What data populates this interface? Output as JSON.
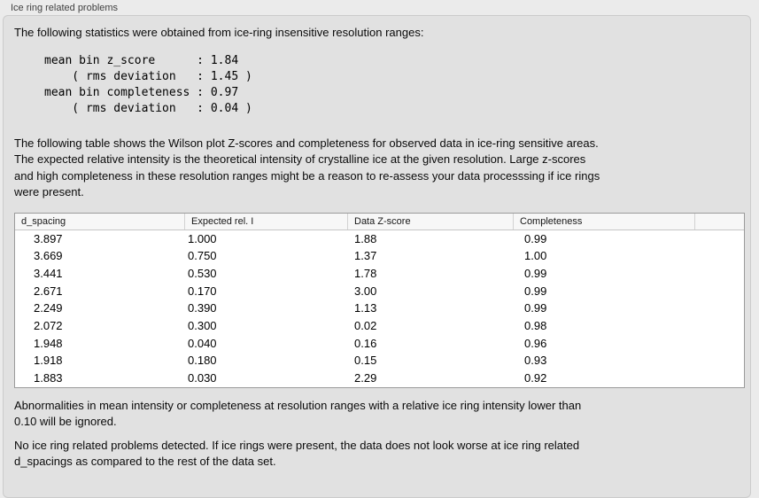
{
  "panel": {
    "title": "Ice ring related problems",
    "intro": "The following statistics were obtained from ice-ring insensitive resolution ranges:",
    "stats_block": "mean bin z_score      : 1.84\n    ( rms deviation   : 1.45 )\nmean bin completeness : 0.97\n    ( rms deviation   : 0.04 )",
    "table_description": "The following table shows the Wilson plot Z-scores and completeness for observed data in ice-ring sensitive areas.\nThe expected relative intensity is the theoretical intensity of crystalline ice at the given resolution. Large z-scores\nand high completeness in these resolution ranges might be a reason to re-assess your data processsing if ice rings\nwere present.",
    "ignore_note": "Abnormalities in mean intensity or completeness at resolution ranges with a relative ice ring intensity lower than\n0.10 will be ignored.",
    "conclusion": "No ice ring related problems detected. If ice rings were present, the data does not look worse at ice ring related\nd_spacings as compared to the rest of the data set."
  },
  "table": {
    "columns": [
      "d_spacing",
      "Expected rel. I",
      "Data Z-score",
      "Completeness"
    ],
    "rows": [
      [
        "3.897",
        "1.000",
        "1.88",
        "0.99"
      ],
      [
        "3.669",
        "0.750",
        "1.37",
        "1.00"
      ],
      [
        "3.441",
        "0.530",
        "1.78",
        "0.99"
      ],
      [
        "2.671",
        "0.170",
        "3.00",
        "0.99"
      ],
      [
        "2.249",
        "0.390",
        "1.13",
        "0.99"
      ],
      [
        "2.072",
        "0.300",
        "0.02",
        "0.98"
      ],
      [
        "1.948",
        "0.040",
        "0.16",
        "0.96"
      ],
      [
        "1.918",
        "0.180",
        "0.15",
        "0.93"
      ],
      [
        "1.883",
        "0.030",
        "2.29",
        "0.92"
      ]
    ]
  },
  "colors": {
    "outer_background": "#ebebeb",
    "panel_background": "#e1e1e1",
    "panel_border": "#cbcbcb",
    "table_border": "#9b9b9b",
    "table_header_background": "#f7f7f7"
  }
}
